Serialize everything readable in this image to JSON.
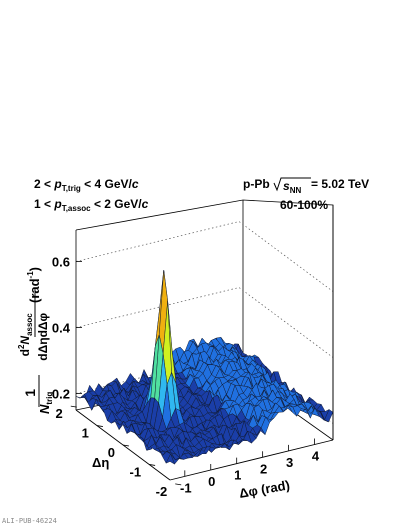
{
  "chart_data": {
    "type": "surface",
    "title": "",
    "collision_label": "p-Pb",
    "energy_label": "= 5.02 TeV",
    "centrality": "60-100%",
    "trigger_cut": "2 < p_T,trig < 4 GeV/c",
    "assoc_cut": "1 < p_T,assoc < 2 GeV/c",
    "xlabel": "Δφ (rad)",
    "ylabel": "Δη",
    "zlabel": "1/N_trig d²N_assoc/dΔηdΔφ (rad⁻¹)",
    "x_range": [
      -1.5708,
      4.7124
    ],
    "y_range": [
      -1.8,
      1.8
    ],
    "zlim": [
      0.15,
      0.75
    ],
    "x_ticks": [
      "-1",
      "0",
      "1",
      "2",
      "3",
      "4"
    ],
    "y_ticks": [
      "-2",
      "-1",
      "0",
      "1",
      "2"
    ],
    "z_ticks": [
      "0.2",
      "0.4",
      "0.6"
    ],
    "x_tick_values": [
      -1,
      0,
      1,
      2,
      3,
      4
    ],
    "y_tick_values": [
      -2,
      -1,
      0,
      1,
      2
    ],
    "z_tick_values": [
      0.2,
      0.4,
      0.6
    ],
    "near_side_peak": {
      "dphi": 0,
      "deta": 0,
      "height": 0.64
    },
    "near_side_ridge_level": 0.2,
    "away_side_ridge_level": 0.27,
    "colorscale": [
      "#1a3ea8",
      "#2070e0",
      "#30b8f0",
      "#50e0a0",
      "#d0f020",
      "#f0b010",
      "#e05010",
      "#a01010"
    ],
    "grid": false,
    "watermark": "ALI-PUB-46224"
  }
}
